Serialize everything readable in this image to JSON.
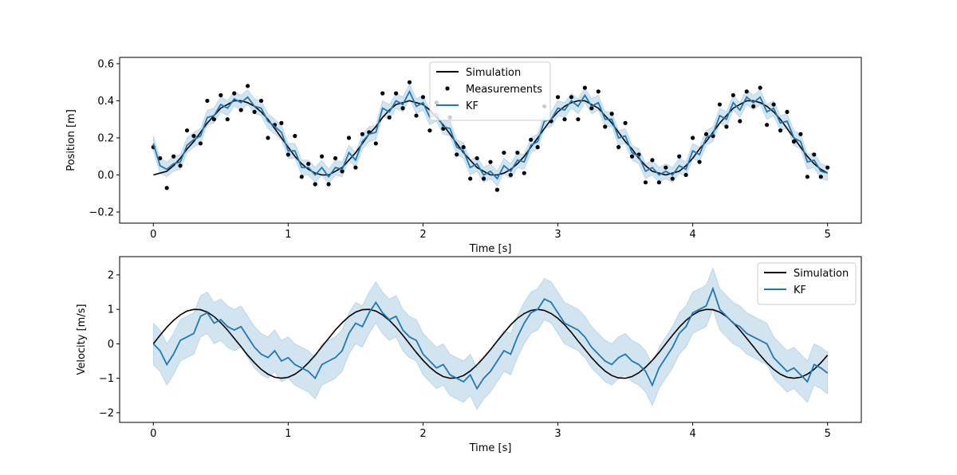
{
  "chart_data": [
    {
      "type": "line",
      "xlabel": "Time [s]",
      "ylabel": "Position [m]",
      "xlim": [
        -0.25,
        5.25
      ],
      "ylim": [
        -0.26,
        0.634
      ],
      "xticks": [
        "0",
        "1",
        "2",
        "3",
        "4",
        "5"
      ],
      "yticks": [
        "−0.2",
        "0.0",
        "0.2",
        "0.4",
        "0.6"
      ],
      "ytick_values": [
        -0.2,
        0,
        0.2,
        0.4,
        0.6
      ],
      "grid": false,
      "legend": "top-center",
      "time": {
        "start": 0,
        "end": 5,
        "step": 0.05
      },
      "series": [
        {
          "name": "Simulation",
          "kind": "line",
          "color": "#000000",
          "values": [
            0,
            0.01,
            0.02,
            0.05,
            0.09,
            0.14,
            0.18,
            0.23,
            0.28,
            0.32,
            0.36,
            0.38,
            0.4,
            0.4,
            0.39,
            0.37,
            0.34,
            0.3,
            0.25,
            0.2,
            0.15,
            0.1,
            0.06,
            0.03,
            0.01,
            0.0,
            0.0,
            0.02,
            0.04,
            0.08,
            0.12,
            0.17,
            0.22,
            0.26,
            0.31,
            0.35,
            0.38,
            0.39,
            0.4,
            0.39,
            0.38,
            0.35,
            0.31,
            0.27,
            0.22,
            0.17,
            0.12,
            0.08,
            0.04,
            0.02,
            0.0,
            0.0,
            0.01,
            0.03,
            0.06,
            0.1,
            0.15,
            0.2,
            0.25,
            0.3,
            0.34,
            0.37,
            0.39,
            0.4,
            0.4,
            0.38,
            0.36,
            0.32,
            0.28,
            0.23,
            0.18,
            0.14,
            0.09,
            0.05,
            0.02,
            0.01,
            0.0,
            0.01,
            0.02,
            0.05,
            0.09,
            0.14,
            0.18,
            0.23,
            0.28,
            0.32,
            0.36,
            0.38,
            0.4,
            0.4,
            0.39,
            0.37,
            0.34,
            0.3,
            0.25,
            0.2,
            0.15,
            0.1,
            0.06,
            0.03,
            0.01
          ]
        },
        {
          "name": "Measurements",
          "kind": "scatter",
          "color": "#000000",
          "values": [
            0.15,
            0.09,
            -0.07,
            0.1,
            0.05,
            0.24,
            0.21,
            0.17,
            0.4,
            0.3,
            0.43,
            0.3,
            0.44,
            0.35,
            0.48,
            0.34,
            0.4,
            0.2,
            0.27,
            0.28,
            0.11,
            0.21,
            -0.01,
            0.06,
            -0.05,
            0.1,
            -0.05,
            0.09,
            0.02,
            0.2,
            0.04,
            0.22,
            0.23,
            0.17,
            0.44,
            0.31,
            0.44,
            0.36,
            0.5,
            0.32,
            0.42,
            0.24,
            0.39,
            0.25,
            0.31,
            0.11,
            0.15,
            -0.02,
            0.09,
            -0.02,
            0.07,
            -0.08,
            0.12,
            0.0,
            0.12,
            0.01,
            0.19,
            0.15,
            0.37,
            0.29,
            0.42,
            0.3,
            0.42,
            0.3,
            0.47,
            0.36,
            0.45,
            0.26,
            0.33,
            0.15,
            0.28,
            0.1,
            0.11,
            -0.04,
            0.08,
            -0.04,
            0.04,
            -0.02,
            0.1,
            0.0,
            0.2,
            0.07,
            0.22,
            0.21,
            0.38,
            0.26,
            0.43,
            0.29,
            0.45,
            0.37,
            0.47,
            0.27,
            0.38,
            0.24,
            0.34,
            0.18,
            0.22,
            -0.01,
            0.11,
            -0.01,
            0.04
          ]
        },
        {
          "name": "KF",
          "kind": "line",
          "color": "#1f77b4",
          "band": 0.04,
          "values": [
            0.17,
            0.05,
            0.03,
            0.06,
            0.07,
            0.16,
            0.19,
            0.21,
            0.31,
            0.32,
            0.38,
            0.36,
            0.41,
            0.39,
            0.42,
            0.37,
            0.36,
            0.29,
            0.26,
            0.23,
            0.13,
            0.13,
            0.04,
            0.04,
            0.0,
            0.04,
            -0.01,
            0.04,
            0.03,
            0.12,
            0.08,
            0.18,
            0.22,
            0.23,
            0.36,
            0.34,
            0.4,
            0.38,
            0.45,
            0.37,
            0.39,
            0.31,
            0.33,
            0.26,
            0.25,
            0.15,
            0.13,
            0.04,
            0.06,
            0.0,
            0.02,
            -0.02,
            0.05,
            0.02,
            0.08,
            0.07,
            0.16,
            0.18,
            0.29,
            0.3,
            0.36,
            0.35,
            0.4,
            0.37,
            0.43,
            0.37,
            0.39,
            0.3,
            0.3,
            0.2,
            0.21,
            0.12,
            0.1,
            0.02,
            0.04,
            0.0,
            0.02,
            0.0,
            0.05,
            0.03,
            0.13,
            0.11,
            0.2,
            0.22,
            0.32,
            0.3,
            0.39,
            0.35,
            0.42,
            0.39,
            0.42,
            0.34,
            0.36,
            0.28,
            0.29,
            0.2,
            0.18,
            0.07,
            0.08,
            0.02,
            0.01
          ]
        }
      ]
    },
    {
      "type": "line",
      "xlabel": "Time [s]",
      "ylabel": "Velocity [m/s]",
      "xlim": [
        -0.25,
        5.25
      ],
      "ylim": [
        -2.28,
        2.53
      ],
      "xticks": [
        "0",
        "1",
        "2",
        "3",
        "4",
        "5"
      ],
      "yticks": [
        "−2",
        "−1",
        "0",
        "1",
        "2"
      ],
      "ytick_values": [
        -2,
        -1,
        0,
        1,
        2
      ],
      "grid": false,
      "legend": "top-right",
      "time": {
        "start": 0,
        "end": 5,
        "step": 0.05
      },
      "series": [
        {
          "name": "Simulation",
          "kind": "line",
          "color": "#000000",
          "values": [
            0,
            0.25,
            0.48,
            0.68,
            0.84,
            0.95,
            1,
            0.99,
            0.92,
            0.79,
            0.61,
            0.4,
            0.16,
            -0.08,
            -0.33,
            -0.55,
            -0.74,
            -0.88,
            -0.97,
            -1,
            -0.97,
            -0.88,
            -0.74,
            -0.55,
            -0.33,
            -0.08,
            0.16,
            0.4,
            0.61,
            0.79,
            0.92,
            0.99,
            1,
            0.95,
            0.84,
            0.68,
            0.48,
            0.25,
            0,
            -0.25,
            -0.48,
            -0.68,
            -0.84,
            -0.95,
            -1,
            -0.99,
            -0.92,
            -0.79,
            -0.61,
            -0.4,
            -0.17,
            0.08,
            0.32,
            0.55,
            0.74,
            0.88,
            0.97,
            1,
            0.97,
            0.88,
            0.74,
            0.55,
            0.33,
            0.08,
            -0.16,
            -0.4,
            -0.61,
            -0.79,
            -0.92,
            -0.99,
            -1,
            -0.95,
            -0.84,
            -0.68,
            -0.48,
            -0.25,
            0,
            0.25,
            0.48,
            0.68,
            0.84,
            0.95,
            1,
            0.99,
            0.92,
            0.79,
            0.61,
            0.4,
            0.16,
            -0.08,
            -0.33,
            -0.55,
            -0.74,
            -0.88,
            -0.97,
            -1,
            -0.97,
            -0.88,
            -0.74,
            -0.55,
            -0.33
          ]
        },
        {
          "name": "KF",
          "kind": "line",
          "color": "#1f77b4",
          "band": 0.6,
          "values": [
            0,
            -0.2,
            -0.6,
            -0.3,
            0.1,
            0.2,
            0.3,
            0.8,
            0.9,
            0.6,
            0.7,
            0.5,
            0.4,
            0.5,
            0.2,
            -0.1,
            -0.3,
            -0.4,
            -0.2,
            -0.5,
            -0.4,
            -0.6,
            -0.7,
            -0.8,
            -1.0,
            -0.6,
            -0.5,
            -0.4,
            -0.2,
            0.3,
            0.6,
            0.5,
            0.9,
            1.2,
            0.9,
            0.7,
            0.8,
            0.4,
            0.2,
            0.1,
            -0.3,
            -0.5,
            -0.7,
            -0.6,
            -0.9,
            -1.0,
            -1.1,
            -0.9,
            -1.3,
            -1.0,
            -0.8,
            -0.5,
            -0.2,
            -0.3,
            0.2,
            0.6,
            0.9,
            1.0,
            1.3,
            1.2,
            0.9,
            0.6,
            0.5,
            0.4,
            0.2,
            -0.1,
            -0.3,
            -0.5,
            -0.6,
            -0.4,
            -0.3,
            -0.5,
            -0.6,
            -0.8,
            -1.2,
            -0.7,
            -0.4,
            -0.1,
            0.3,
            0.5,
            0.9,
            1.0,
            1.1,
            1.6,
            1.0,
            0.8,
            0.6,
            0.5,
            0.3,
            0.2,
            0.1,
            0.0,
            -0.4,
            -0.6,
            -0.8,
            -0.7,
            -0.9,
            -1.1,
            -0.6,
            -0.7,
            -0.85
          ]
        }
      ]
    }
  ]
}
